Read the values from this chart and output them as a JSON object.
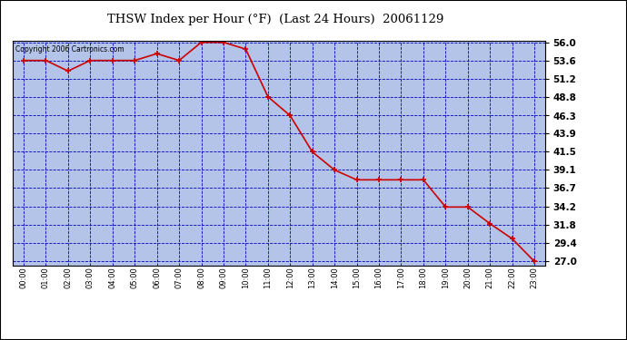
{
  "title": "THSW Index per Hour (°F)  (Last 24 Hours)  20061129",
  "copyright": "Copyright 2006 Cartronics.com",
  "x_labels": [
    "00:00",
    "01:00",
    "02:00",
    "03:00",
    "04:00",
    "05:00",
    "06:00",
    "07:00",
    "08:00",
    "09:00",
    "10:00",
    "11:00",
    "12:00",
    "13:00",
    "14:00",
    "15:00",
    "16:00",
    "17:00",
    "18:00",
    "19:00",
    "20:00",
    "21:00",
    "22:00",
    "23:00"
  ],
  "y_values": [
    53.6,
    53.6,
    52.2,
    53.6,
    53.6,
    53.6,
    54.5,
    53.6,
    56.0,
    56.0,
    55.1,
    48.8,
    46.3,
    41.5,
    39.1,
    37.8,
    37.8,
    37.8,
    37.8,
    34.2,
    34.2,
    32.0,
    30.0,
    27.0
  ],
  "line_color": "#cc0000",
  "marker_color": "#cc0000",
  "bg_color": "#b3c4e8",
  "outer_bg_color": "#ffffff",
  "grid_color": "#0000bb",
  "border_color": "#000000",
  "y_min": 27.0,
  "y_max": 56.0,
  "y_ticks": [
    27.0,
    29.4,
    31.8,
    34.2,
    36.7,
    39.1,
    41.5,
    43.9,
    46.3,
    48.8,
    51.2,
    53.6,
    56.0
  ]
}
